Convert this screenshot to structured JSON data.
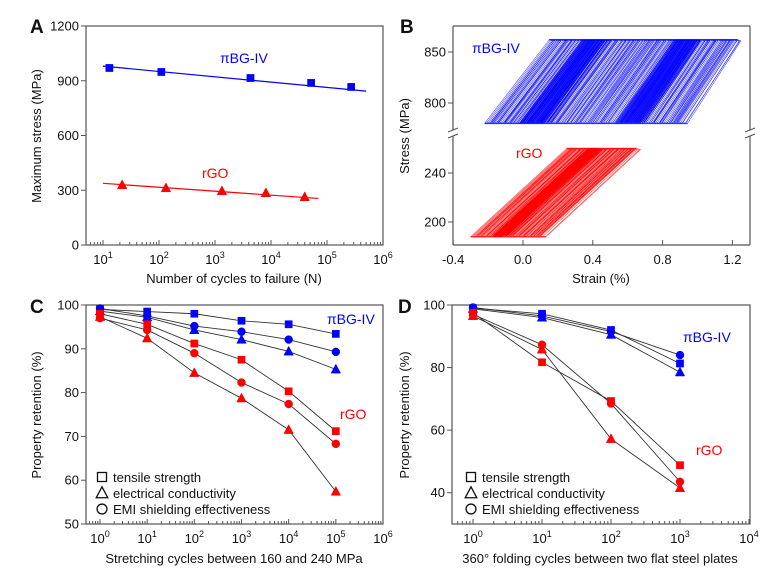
{
  "figure": {
    "colors": {
      "blue": "#0000ff",
      "red": "#ff0000",
      "connector": "#333333",
      "text": "#111111"
    }
  },
  "chart_data": [
    {
      "panel": "A",
      "type": "scatter",
      "title": "",
      "xlabel": "Number of cycles to failure (N)",
      "ylabel": "Maximum stress (MPa)",
      "xscale": "log",
      "xlim": [
        5,
        1000000
      ],
      "ylim": [
        0,
        1200
      ],
      "xticks": [
        10,
        100,
        1000,
        10000,
        100000,
        1000000
      ],
      "xtick_labels": [
        {
          "base": "10",
          "exp": "1"
        },
        {
          "base": "10",
          "exp": "2"
        },
        {
          "base": "10",
          "exp": "3"
        },
        {
          "base": "10",
          "exp": "4"
        },
        {
          "base": "10",
          "exp": "5"
        },
        {
          "base": "10",
          "exp": "6"
        }
      ],
      "yticks": [
        0,
        300,
        600,
        900,
        1200
      ],
      "ytick_labels": [
        "0",
        "300",
        "600",
        "900",
        "1200"
      ],
      "grid": false,
      "series": [
        {
          "name": "πBG-IV",
          "color": "#0000ff",
          "marker": "square",
          "x": [
            13,
            110,
            4300,
            52000,
            270000
          ],
          "y": [
            970,
            948,
            915,
            888,
            866
          ],
          "fit": {
            "x": [
              10,
              500000
            ],
            "y": [
              980,
              843
            ]
          }
        },
        {
          "name": "rGO",
          "color": "#ff0000",
          "marker": "triangle",
          "x": [
            22,
            133,
            1330,
            8100,
            40000
          ],
          "y": [
            329,
            312,
            296,
            285,
            263
          ],
          "fit": {
            "x": [
              10,
              70000
            ],
            "y": [
              338,
              255
            ]
          }
        }
      ],
      "annotations": [
        {
          "text": "πBG-IV",
          "color": "#0000ff",
          "x": 3000,
          "y": 1040
        },
        {
          "text": "rGO",
          "color": "#ff0000",
          "x": 1500,
          "y": 390
        }
      ]
    },
    {
      "panel": "B",
      "type": "line",
      "title": "",
      "xlabel": "Strain (%)",
      "ylabel": "Stress (MPa)",
      "xlim": [
        -0.4,
        1.3
      ],
      "xticks": [
        -0.4,
        0.0,
        0.4,
        0.8,
        1.2
      ],
      "xtick_labels": [
        "-0.4",
        "0.0",
        "0.4",
        "0.8",
        "1.2"
      ],
      "broken_y_axis": true,
      "ylim_upper": [
        762,
        876
      ],
      "ylim_lower": [
        178,
        280
      ],
      "yticks_upper": [
        800,
        850
      ],
      "yticks_lower": [
        200,
        240
      ],
      "ytick_labels": [
        "200",
        "240",
        "800",
        "850"
      ],
      "grid": false,
      "series": [
        {
          "name": "πBG-IV",
          "color": "#0000ff",
          "segment": "upper",
          "description": "cyclic stress-strain loops between ~780 and ~862 MPa",
          "stress_range": [
            780,
            862
          ],
          "strain_start_bottom": -0.22,
          "strain_end_bottom": 0.91,
          "strain_start_top": 0.15,
          "strain_end_top": 1.23,
          "dense_bands_bottom_strain": [
            0.05,
            0.6
          ]
        },
        {
          "name": "rGO",
          "color": "#ff0000",
          "segment": "lower",
          "description": "cyclic stress-strain loops between ~188 and ~260 MPa",
          "stress_range": [
            188,
            260
          ],
          "strain_start_bottom": -0.3,
          "strain_end_bottom": 0.1,
          "strain_start_top": 0.25,
          "strain_end_top": 0.65
        }
      ],
      "annotations": [
        {
          "text": "πBG-IV",
          "color": "#0000ff"
        },
        {
          "text": "rGO",
          "color": "#ff0000"
        }
      ]
    },
    {
      "panel": "C",
      "type": "line",
      "title": "",
      "xlabel": "Stretching cycles between 160 and 240 MPa",
      "ylabel": "Property retention (%)",
      "xscale": "log",
      "xlim": [
        0.5,
        1000000
      ],
      "ylim": [
        50,
        100
      ],
      "xticks": [
        1,
        10,
        100,
        1000,
        10000,
        100000,
        1000000
      ],
      "xtick_labels": [
        {
          "base": "10",
          "exp": "0"
        },
        {
          "base": "10",
          "exp": "1"
        },
        {
          "base": "10",
          "exp": "2"
        },
        {
          "base": "10",
          "exp": "3"
        },
        {
          "base": "10",
          "exp": "4"
        },
        {
          "base": "10",
          "exp": "5"
        },
        {
          "base": "10",
          "exp": "6"
        }
      ],
      "yticks": [
        50,
        60,
        70,
        80,
        90,
        100
      ],
      "ytick_labels": [
        "50",
        "60",
        "70",
        "80",
        "90",
        "100"
      ],
      "grid": false,
      "x": [
        1,
        10,
        100,
        1000,
        10000,
        100000
      ],
      "series": [
        {
          "name": "πBG-IV tensile strength",
          "group": "πBG-IV",
          "color": "#0000ff",
          "marker": "square",
          "values": [
            99.0,
            98.5,
            98.0,
            96.4,
            95.6,
            93.4
          ]
        },
        {
          "name": "πBG-IV EMI shielding effectiveness",
          "group": "πBG-IV",
          "color": "#0000ff",
          "marker": "circle",
          "values": [
            99.2,
            97.5,
            95.2,
            93.9,
            92.1,
            89.3
          ]
        },
        {
          "name": "πBG-IV electrical conductivity",
          "group": "πBG-IV",
          "color": "#0000ff",
          "marker": "triangle",
          "values": [
            98.6,
            97.2,
            94.3,
            92.1,
            89.4,
            85.3
          ]
        },
        {
          "name": "rGO tensile strength",
          "group": "rGO",
          "color": "#ff0000",
          "marker": "square",
          "values": [
            98.0,
            95.6,
            91.2,
            87.5,
            80.3,
            71.2
          ]
        },
        {
          "name": "rGO EMI shielding effectiveness",
          "group": "rGO",
          "color": "#ff0000",
          "marker": "circle",
          "values": [
            97.0,
            94.3,
            89.0,
            82.3,
            77.4,
            68.3
          ]
        },
        {
          "name": "rGO electrical conductivity",
          "group": "rGO",
          "color": "#ff0000",
          "marker": "triangle",
          "values": [
            97.3,
            92.4,
            84.5,
            78.7,
            71.5,
            57.4
          ]
        }
      ],
      "legend": {
        "position": "bottom-left",
        "entries": [
          {
            "marker": "square",
            "label": "tensile strength"
          },
          {
            "marker": "triangle",
            "label": "electrical conductivity"
          },
          {
            "marker": "circle",
            "label": "EMI shielding effectiveness"
          }
        ]
      },
      "annotations": [
        {
          "text": "πBG-IV",
          "color": "#0000ff"
        },
        {
          "text": "rGO",
          "color": "#ff0000"
        }
      ]
    },
    {
      "panel": "D",
      "type": "line",
      "title": "",
      "xlabel": "360° folding cycles between two flat steel plates",
      "ylabel": "Property retention (%)",
      "xscale": "log",
      "xlim": [
        0.5,
        10000
      ],
      "ylim": [
        30,
        100
      ],
      "xticks": [
        1,
        10,
        100,
        1000,
        10000
      ],
      "xtick_labels": [
        {
          "base": "10",
          "exp": "0"
        },
        {
          "base": "10",
          "exp": "1"
        },
        {
          "base": "10",
          "exp": "2"
        },
        {
          "base": "10",
          "exp": "3"
        },
        {
          "base": "10",
          "exp": "4"
        }
      ],
      "yticks": [
        40,
        60,
        80,
        100
      ],
      "ytick_labels": [
        "40",
        "60",
        "80",
        "100"
      ],
      "grid": false,
      "x": [
        1,
        10,
        100,
        1000
      ],
      "series": [
        {
          "name": "πBG-IV tensile strength",
          "group": "πBG-IV",
          "color": "#0000ff",
          "marker": "square",
          "values": [
            99.0,
            97.2,
            92.0,
            81.3
          ]
        },
        {
          "name": "πBG-IV EMI shielding effectiveness",
          "group": "πBG-IV",
          "color": "#0000ff",
          "marker": "circle",
          "values": [
            99.2,
            96.5,
            91.5,
            84.0
          ]
        },
        {
          "name": "πBG-IV electrical conductivity",
          "group": "πBG-IV",
          "color": "#0000ff",
          "marker": "triangle",
          "values": [
            98.8,
            96.0,
            90.5,
            78.5
          ]
        },
        {
          "name": "rGO tensile strength",
          "group": "rGO",
          "color": "#ff0000",
          "marker": "square",
          "values": [
            97.5,
            81.7,
            69.3,
            48.8
          ]
        },
        {
          "name": "rGO EMI shielding effectiveness",
          "group": "rGO",
          "color": "#ff0000",
          "marker": "circle",
          "values": [
            97.0,
            87.3,
            68.5,
            43.5
          ]
        },
        {
          "name": "rGO electrical conductivity",
          "group": "rGO",
          "color": "#ff0000",
          "marker": "triangle",
          "values": [
            96.5,
            85.8,
            57.2,
            41.5
          ]
        }
      ],
      "legend": {
        "position": "bottom-left",
        "entries": [
          {
            "marker": "square",
            "label": "tensile strength"
          },
          {
            "marker": "triangle",
            "label": "electrical conductivity"
          },
          {
            "marker": "circle",
            "label": "EMI shielding effectiveness"
          }
        ]
      },
      "annotations": [
        {
          "text": "πBG-IV",
          "color": "#0000ff"
        },
        {
          "text": "rGO",
          "color": "#ff0000"
        }
      ]
    }
  ],
  "panel_letters": [
    "A",
    "B",
    "C",
    "D"
  ]
}
